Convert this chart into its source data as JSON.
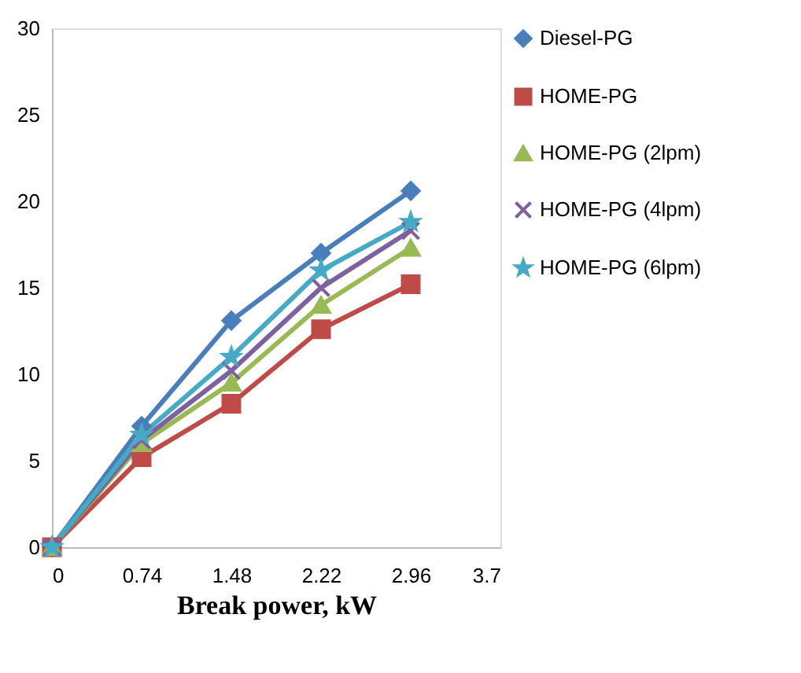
{
  "chart_data": {
    "type": "line",
    "xlabel": "Break power, kW",
    "x": [
      0,
      0.74,
      1.48,
      2.22,
      2.96
    ],
    "xlim": [
      0,
      3.7
    ],
    "xticks": [
      0,
      0.74,
      1.48,
      2.22,
      2.96,
      3.7
    ],
    "ylim": [
      0,
      30
    ],
    "yticks": [
      0,
      5,
      10,
      15,
      20,
      25,
      30
    ],
    "grid": false,
    "legend": "right",
    "line_style": "solid",
    "series": [
      {
        "name": "Diesel-PG",
        "color": "#4a7ebb",
        "marker": "diamond",
        "values": [
          0,
          7.0,
          13.1,
          17.0,
          20.6
        ]
      },
      {
        "name": "HOME-PG",
        "color": "#be4b48",
        "marker": "square",
        "values": [
          0,
          5.2,
          8.3,
          12.6,
          15.2
        ]
      },
      {
        "name": "HOME-PG  (2lpm)",
        "color": "#98b954",
        "marker": "triangle",
        "values": [
          0,
          6.0,
          9.5,
          14.0,
          17.3
        ]
      },
      {
        "name": "HOME-PG  (4lpm)",
        "color": "#7d60a0",
        "marker": "cross",
        "values": [
          0,
          6.2,
          10.2,
          15.0,
          18.3
        ]
      },
      {
        "name": "HOME-PG  (6lpm)",
        "color": "#46aac5",
        "marker": "star",
        "values": [
          0,
          6.5,
          11.0,
          16.0,
          18.8
        ]
      }
    ]
  }
}
